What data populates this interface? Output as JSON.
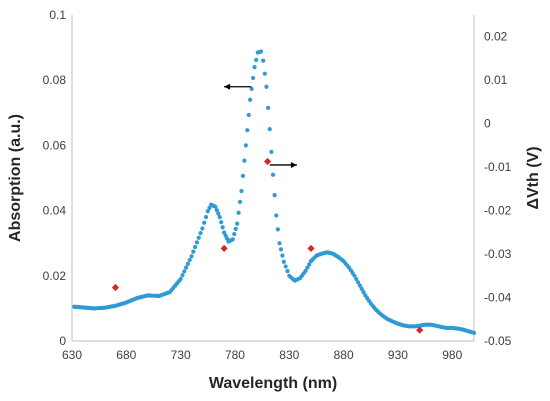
{
  "chart_data": {
    "type": "scatter",
    "xlabel": "Wavelength (nm)",
    "ylabel_left": "Absorption (a.u.)",
    "ylabel_right": "ΔVth (V)",
    "xlim": [
      630,
      1000
    ],
    "ylim_left": [
      0,
      0.1
    ],
    "ylim_right": [
      -0.05,
      0.025
    ],
    "x_ticks": [
      "630",
      "680",
      "730",
      "780",
      "830",
      "880",
      "930",
      "980"
    ],
    "y_left_ticks": [
      "0",
      "0.02",
      "0.04",
      "0.06",
      "0.08",
      "0.1"
    ],
    "y_right_ticks": [
      "-0.05",
      "-0.04",
      "-0.03",
      "-0.02",
      "-0.01",
      "0",
      "0.01",
      "0.02"
    ],
    "grid": false,
    "legend": "none",
    "series": [
      {
        "axis": "left",
        "color": "#2E9AD6",
        "marker": "circle",
        "points": [
          [
            632,
            0.0105
          ],
          [
            640,
            0.0103
          ],
          [
            650,
            0.01
          ],
          [
            660,
            0.0102
          ],
          [
            670,
            0.0108
          ],
          [
            680,
            0.0118
          ],
          [
            690,
            0.0132
          ],
          [
            700,
            0.014
          ],
          [
            710,
            0.0138
          ],
          [
            720,
            0.015
          ],
          [
            730,
            0.019
          ],
          [
            740,
            0.026
          ],
          [
            750,
            0.0345
          ],
          [
            755,
            0.0398
          ],
          [
            758,
            0.0418
          ],
          [
            762,
            0.0412
          ],
          [
            766,
            0.038
          ],
          [
            770,
            0.0333
          ],
          [
            774,
            0.0305
          ],
          [
            778,
            0.0312
          ],
          [
            782,
            0.036
          ],
          [
            786,
            0.046
          ],
          [
            790,
            0.06
          ],
          [
            794,
            0.074
          ],
          [
            798,
            0.084
          ],
          [
            801,
            0.0885
          ],
          [
            804,
            0.0888
          ],
          [
            806,
            0.086
          ],
          [
            809,
            0.078
          ],
          [
            812,
            0.065
          ],
          [
            815,
            0.051
          ],
          [
            818,
            0.0385
          ],
          [
            821,
            0.03
          ],
          [
            825,
            0.0243
          ],
          [
            830,
            0.02
          ],
          [
            835,
            0.0185
          ],
          [
            840,
            0.0193
          ],
          [
            845,
            0.0215
          ],
          [
            850,
            0.0245
          ],
          [
            855,
            0.0262
          ],
          [
            860,
            0.0268
          ],
          [
            865,
            0.0272
          ],
          [
            870,
            0.0268
          ],
          [
            875,
            0.0258
          ],
          [
            880,
            0.0245
          ],
          [
            885,
            0.0225
          ],
          [
            890,
            0.02
          ],
          [
            895,
            0.017
          ],
          [
            900,
            0.014
          ],
          [
            905,
            0.0115
          ],
          [
            910,
            0.0095
          ],
          [
            915,
            0.008
          ],
          [
            920,
            0.0068
          ],
          [
            925,
            0.006
          ],
          [
            930,
            0.0053
          ],
          [
            935,
            0.0048
          ],
          [
            940,
            0.0045
          ],
          [
            945,
            0.0045
          ],
          [
            950,
            0.0047
          ],
          [
            955,
            0.005
          ],
          [
            960,
            0.005
          ],
          [
            965,
            0.0047
          ],
          [
            970,
            0.0043
          ],
          [
            975,
            0.004
          ],
          [
            980,
            0.004
          ],
          [
            985,
            0.0038
          ],
          [
            990,
            0.0035
          ],
          [
            995,
            0.003
          ],
          [
            1000,
            0.0025
          ]
        ]
      },
      {
        "axis": "right",
        "color": "#D62728",
        "marker": "diamond",
        "points": [
          [
            670,
            -0.0377
          ],
          [
            770,
            -0.0287
          ],
          [
            810,
            -0.0087
          ],
          [
            850,
            -0.0287
          ],
          [
            950,
            -0.0475
          ]
        ]
      }
    ],
    "annotations": [
      {
        "type": "arrow",
        "direction": "left",
        "from": [
          795,
          0.078
        ],
        "to": [
          770,
          0.078
        ],
        "axis": "left"
      },
      {
        "type": "arrow",
        "direction": "right",
        "from": [
          812,
          -0.0095
        ],
        "to": [
          837,
          -0.0095
        ],
        "axis": "right"
      }
    ]
  }
}
